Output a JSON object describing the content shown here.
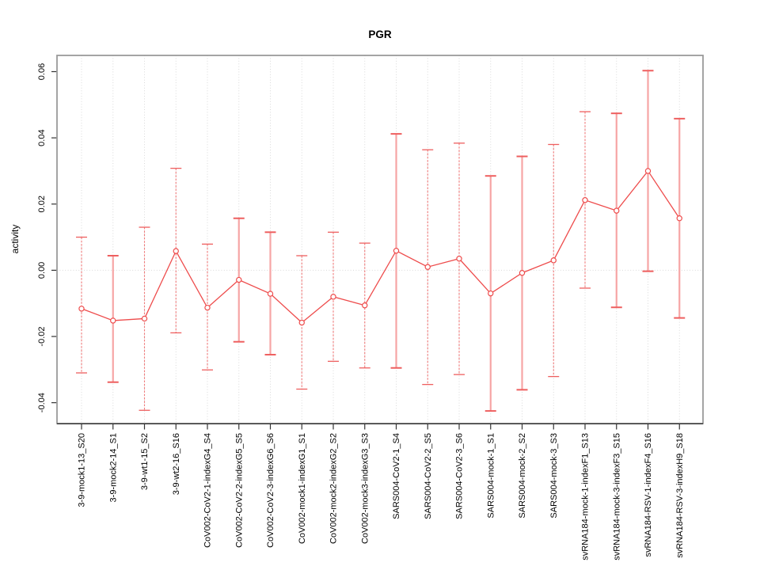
{
  "chart_data": {
    "type": "line",
    "subtype": "errorbar-line-plot",
    "title": "PGR",
    "xlabel": "",
    "ylabel": "activity",
    "ylim": [
      -0.0463,
      0.0649
    ],
    "yticks": [
      0.06,
      0.04,
      0.02,
      0.0,
      -0.02,
      -0.04
    ],
    "ytick_labels": [
      "0.06",
      "0.04",
      "0.02",
      "0.00",
      "-0.02",
      "-0.04"
    ],
    "grid": "vertical dotted gridline per category plus dotted horizontal line at y=0",
    "legend_position": "none",
    "marker": "open-circle",
    "categories": [
      "3-9-mock1-13_S20",
      "3-9-mock2-14_S1",
      "3-9-wt1-15_S2",
      "3-9-wt2-16_S16",
      "CoV002-CoV2-1-indexG4_S4",
      "CoV002-CoV2-2-indexG5_S5",
      "CoV002-CoV2-3-indexG6_S6",
      "CoV002-mock1-indexG1_S1",
      "CoV002-mock2-indexG2_S2",
      "CoV002-mock3-indexG3_S3",
      "SARS004-CoV2-1_S4",
      "SARS004-CoV2-2_S5",
      "SARS004-CoV2-3_S6",
      "SARS004-mock-1_S1",
      "SARS004-mock-2_S2",
      "SARS004-mock-3_S3",
      "svRNA184-mock-1-indexF1_S13",
      "svRNA184-mock-3-indexF3_S15",
      "svRNA184-RSV-1-indexF4_S16",
      "svRNA184-RSV-3-indexH9_S18"
    ],
    "series": [
      {
        "name": "activity",
        "values": [
          -0.0116,
          -0.0152,
          -0.0146,
          0.0058,
          -0.0113,
          -0.0029,
          -0.0071,
          -0.0158,
          -0.008,
          -0.0106,
          0.0059,
          0.001,
          0.0035,
          -0.007,
          -0.0008,
          0.003,
          0.0212,
          0.018,
          0.03,
          0.0157
        ],
        "ci_low": [
          -0.031,
          -0.0338,
          -0.0423,
          -0.0189,
          -0.0301,
          -0.0216,
          -0.0255,
          -0.0359,
          -0.0275,
          -0.0295,
          -0.0295,
          -0.0345,
          -0.0315,
          -0.0425,
          -0.0361,
          -0.0321,
          -0.0054,
          -0.0112,
          -0.0003,
          -0.0144
        ],
        "ci_high": [
          0.01,
          0.0044,
          0.013,
          0.0308,
          0.0079,
          0.0157,
          0.0115,
          0.0044,
          0.0115,
          0.0082,
          0.0412,
          0.0364,
          0.0384,
          0.0285,
          0.0344,
          0.038,
          0.0479,
          0.0474,
          0.0603,
          0.0458
        ],
        "bar_weight": [
          1,
          2,
          1,
          1,
          1,
          2,
          2,
          1,
          1,
          1,
          2,
          1,
          1,
          2,
          2,
          1,
          1,
          2,
          2,
          2
        ]
      }
    ]
  },
  "colors": {
    "line_red": "#ee4c4c",
    "marker_stroke": "#ee4c4c",
    "marker_fill": "#ffffff",
    "errorbar_thin": "#f07b7b",
    "errorbar_thick": "#f6a5a5",
    "cap_red": "#ee5f5f",
    "grid_gray": "#d9d9d9",
    "zero_line_gray": "#d9d9d9",
    "box_gray": "#9a9a9a",
    "axis_dark": "#333333",
    "text_black": "#000000"
  }
}
